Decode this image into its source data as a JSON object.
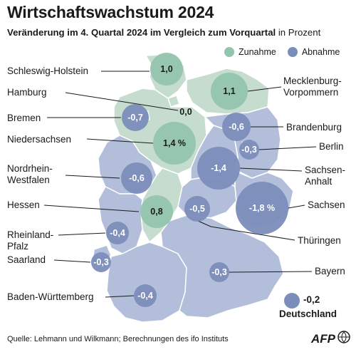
{
  "title": "Wirtschaftswachstum 2024",
  "subtitle_bold": "Veränderung im 4. Quartal 2024 im Vergleich zum Vorquartal",
  "subtitle_rest": " in Prozent",
  "legend": {
    "increase": "Zunahme",
    "decrease": "Abnahme"
  },
  "colors": {
    "increase_bubble": "#93c4ad",
    "decrease_bubble": "#7b8db9",
    "map_increase_region": "#c5dccf",
    "map_decrease_region": "#b3bedb",
    "region_border": "#ffffff",
    "leader_line": "#1a1a1a"
  },
  "states": [
    {
      "name": "Schleswig-Holstein",
      "value": "1,0",
      "trend": "increase"
    },
    {
      "name": "Hamburg",
      "value": "0,0",
      "trend": "neutral"
    },
    {
      "name": "Bremen",
      "value": "-0,7",
      "trend": "decrease"
    },
    {
      "name": "Niedersachsen",
      "value": "1,4 %",
      "trend": "increase"
    },
    {
      "name": "Nordrhein-\nWestfalen",
      "value": "-0,6",
      "trend": "decrease"
    },
    {
      "name": "Hessen",
      "value": "0,8",
      "trend": "increase"
    },
    {
      "name": "Rheinland-\nPfalz",
      "value": "-0,4",
      "trend": "decrease"
    },
    {
      "name": "Saarland",
      "value": "-0,3",
      "trend": "decrease"
    },
    {
      "name": "Baden-Württemberg",
      "value": "-0,4",
      "trend": "decrease"
    },
    {
      "name": "Mecklenburg-\nVorpommern",
      "value": "1,1",
      "trend": "increase"
    },
    {
      "name": "Brandenburg",
      "value": "-0,6",
      "trend": "decrease"
    },
    {
      "name": "Berlin",
      "value": "-0,3",
      "trend": "decrease"
    },
    {
      "name": "Sachsen-\nAnhalt",
      "value": "-1,4",
      "trend": "decrease"
    },
    {
      "name": "Sachsen",
      "value": "-1,8 %",
      "trend": "decrease"
    },
    {
      "name": "Thüringen",
      "value": "-0,5",
      "trend": "decrease"
    },
    {
      "name": "Bayern",
      "value": "-0,3",
      "trend": "decrease"
    }
  ],
  "germany": {
    "value": "-0,2",
    "label": "Deutschland"
  },
  "source": "Quelle: Lehmann und Wilkmann; Berechnungen des ifo Instituts",
  "agency": "AFP",
  "icons": [
    "afp-logo-icon"
  ]
}
